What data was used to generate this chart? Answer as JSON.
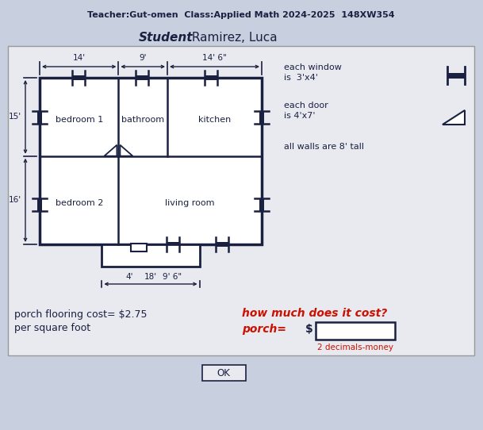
{
  "bg_color": "#c8d0e0",
  "panel_color": "#e8eaf0",
  "header_text": "Teacher:Gut-omen  Class:Applied Math 2024-2025  148XW354",
  "student_label": "Student",
  "student_name": " Ramirez, Luca",
  "dim_top": [
    "14'",
    "9'",
    "14' 6\""
  ],
  "dim_left": [
    "15'",
    "16'"
  ],
  "dim_bottom_left": "4'",
  "dim_bottom_right": "9' 6\"",
  "dim_total": "18'",
  "legend_window": "each window",
  "legend_window2": "is  3'x4'",
  "legend_door": "each door",
  "legend_door2": "is 4'x7'",
  "legend_wall": "all walls are 8' tall",
  "cost_line1": "porch flooring cost= $2.75",
  "cost_line2": "per square foot",
  "how_much": "how much does it cost?",
  "porch_label": "porch=",
  "dollar_sign": "$",
  "note": "2 decimals-money",
  "ok_button": "OK",
  "dark_color": "#1a2040",
  "red_color": "#cc1100"
}
